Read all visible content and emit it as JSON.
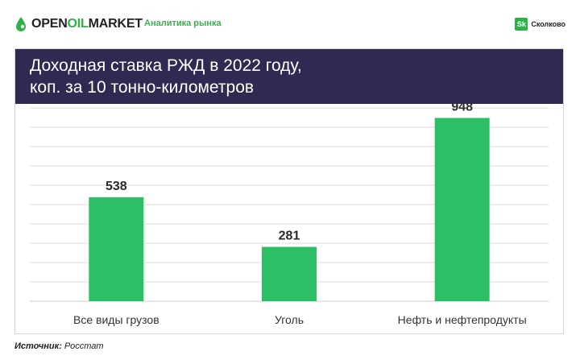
{
  "header": {
    "logo": {
      "part1": "OPEN",
      "part2": "OIL",
      "part3": "MARKET"
    },
    "tag": "Аналитика рынка",
    "partner": {
      "badge": "Sk",
      "name": "Сколково"
    }
  },
  "colors": {
    "bar": "#2dbf66",
    "band": "#302a52",
    "accent": "#2bb34a"
  },
  "chart_data": {
    "type": "bar",
    "title_lines": [
      "Доходная ставка РЖД в 2022 году,",
      "коп. за 10 тонно-километров"
    ],
    "categories": [
      "Все виды грузов",
      "Уголь",
      "Нефть и нефтепродукты"
    ],
    "values": [
      538,
      281,
      948
    ],
    "xlabel": "",
    "ylabel": "",
    "ylim": [
      0,
      1000
    ],
    "grid": true,
    "legend": "none"
  },
  "source": {
    "label": "Источник:",
    "value": "Росстат"
  }
}
